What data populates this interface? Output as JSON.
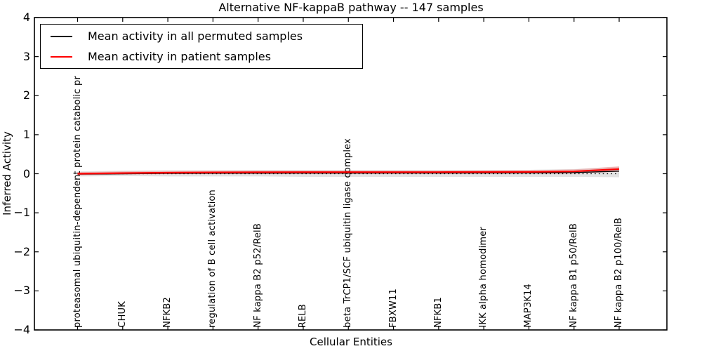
{
  "title": "Alternative NF-kappaB pathway -- 147 samples",
  "legend": {
    "entries": [
      {
        "label": "Mean activity in all permuted samples",
        "color": "#000000"
      },
      {
        "label": "Mean activity in patient samples",
        "color": "#ff0000"
      }
    ]
  },
  "chart_data": {
    "type": "line",
    "title": "Alternative NF-kappaB pathway -- 147 samples",
    "xlabel": "Cellular Entities",
    "ylabel": "Inferred Activity",
    "ylim": [
      -4,
      4
    ],
    "grid": false,
    "legend_position": "upper left",
    "zero_reference_line": true,
    "yticks": [
      {
        "value": 4,
        "label": "4"
      },
      {
        "value": 3,
        "label": "3"
      },
      {
        "value": 2,
        "label": "2"
      },
      {
        "value": 1,
        "label": "1"
      },
      {
        "value": 0,
        "label": "0"
      },
      {
        "value": -1,
        "label": "−1"
      },
      {
        "value": -2,
        "label": "−2"
      },
      {
        "value": -3,
        "label": "−3"
      },
      {
        "value": -4,
        "label": "−4"
      }
    ],
    "categories": [
      "proteasomal ubiquitin-dependent protein catabolic pr",
      "CHUK",
      "NFKB2",
      "regulation of B cell activation",
      "NF kappa B2 p52/RelB",
      "RELB",
      "beta TrCP1/SCF ubiquitin ligase complex",
      "FBXW11",
      "NFKB1",
      "IKK alpha homodimer",
      "MAP3K14",
      "NF kappa B1 p50/RelB",
      "NF kappa B2 p100/RelB"
    ],
    "series": [
      {
        "name": "Mean activity in all permuted samples",
        "color": "#000000",
        "values": [
          -0.01,
          0.0,
          0.01,
          0.012,
          0.015,
          0.017,
          0.018,
          0.019,
          0.02,
          0.021,
          0.023,
          0.03,
          0.066
        ]
      },
      {
        "name": "Mean activity in patient samples",
        "color": "#ff0000",
        "values": [
          0.0,
          0.016,
          0.027,
          0.034,
          0.038,
          0.04,
          0.041,
          0.041,
          0.042,
          0.044,
          0.047,
          0.06,
          0.12
        ]
      }
    ],
    "bands": [
      {
        "name": "permuted-std-band",
        "color": "rgba(0,0,0,0.11)",
        "upper": [
          0.06,
          0.08,
          0.09,
          0.09,
          0.1,
          0.1,
          0.1,
          0.1,
          0.1,
          0.1,
          0.1,
          0.12,
          0.18
        ],
        "lower": [
          -0.07,
          -0.06,
          -0.07,
          -0.07,
          -0.07,
          -0.08,
          -0.08,
          -0.08,
          -0.08,
          -0.08,
          -0.08,
          -0.08,
          -0.09
        ]
      },
      {
        "name": "patient-std-band",
        "color": "rgba(255,0,0,0.20)",
        "upper": [
          0.04,
          0.06,
          0.07,
          0.08,
          0.08,
          0.08,
          0.08,
          0.08,
          0.08,
          0.09,
          0.09,
          0.11,
          0.19
        ],
        "lower": [
          -0.04,
          -0.02,
          -0.01,
          0.0,
          0.0,
          0.0,
          0.0,
          0.0,
          0.0,
          0.0,
          0.01,
          0.01,
          0.05
        ]
      }
    ]
  }
}
